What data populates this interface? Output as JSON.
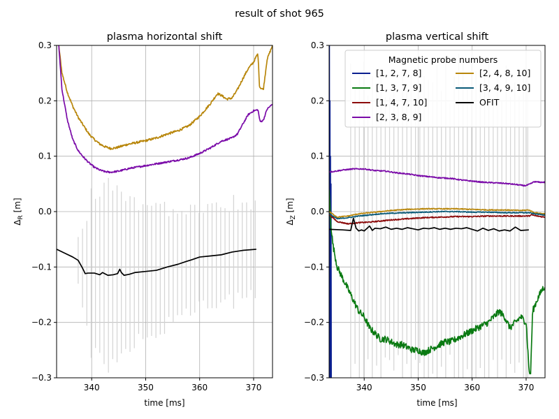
{
  "figure": {
    "suptitle": "result of shot 965"
  },
  "colors": {
    "p1278": "#0a1f8f",
    "p1379": "#0a7a12",
    "p14710": "#8b0a0a",
    "p2389": "#7a0aa8",
    "p24810": "#b8860b",
    "p34910": "#0a5a78",
    "ofit": "#000000",
    "errbar": "#d3d3d3",
    "grid": "#b0b0b0"
  },
  "legend": {
    "title": "Magnetic probe numbers",
    "entries": [
      {
        "label": "[1, 2, 7, 8]",
        "color": "#0a1f8f"
      },
      {
        "label": "[2, 4, 8, 10]",
        "color": "#b8860b"
      },
      {
        "label": "[1, 3, 7, 9]",
        "color": "#0a7a12"
      },
      {
        "label": "[3, 4, 9, 10]",
        "color": "#0a5a78"
      },
      {
        "label": "[1, 4, 7, 10]",
        "color": "#8b0a0a"
      },
      {
        "label": "OFIT",
        "color": "#000000"
      },
      {
        "label": "[2, 3, 8, 9]",
        "color": "#7a0aa8"
      }
    ],
    "placement": "top-right"
  },
  "chart_data": [
    {
      "type": "line",
      "title": "plasma horizontal shift",
      "xlabel": "time [ms]",
      "ylabel": "Δ_R [m]",
      "xlim": [
        333.5,
        373.5
      ],
      "ylim": [
        -0.3,
        0.3
      ],
      "xticks": [
        "340",
        "350",
        "360",
        "370"
      ],
      "xtick_values": [
        340,
        350,
        360,
        370
      ],
      "yticks": [
        "−0.3",
        "−0.2",
        "−0.1",
        "0.0",
        "0.1",
        "0.2",
        "0.3"
      ],
      "ytick_values": [
        -0.3,
        -0.2,
        -0.1,
        0.0,
        0.1,
        0.2,
        0.3
      ],
      "grid": true,
      "series": [
        {
          "name": "[2, 4, 8, 10]",
          "key": "p24810",
          "noise": 0.002,
          "x": [
            333.9,
            334.5,
            335.5,
            336.5,
            337.5,
            338.5,
            339.5,
            340.5,
            341.5,
            342.5,
            343.5,
            344.5,
            345.5,
            346.5,
            348,
            350,
            352,
            354,
            356,
            358,
            360,
            362,
            363.3,
            364,
            365,
            366,
            367,
            368,
            369,
            370,
            370.5,
            370.8,
            371.1,
            371.8,
            372.5,
            373.5
          ],
          "y": [
            0.3,
            0.25,
            0.215,
            0.19,
            0.17,
            0.155,
            0.14,
            0.13,
            0.122,
            0.117,
            0.114,
            0.115,
            0.118,
            0.121,
            0.124,
            0.128,
            0.133,
            0.14,
            0.146,
            0.155,
            0.172,
            0.195,
            0.213,
            0.21,
            0.203,
            0.205,
            0.22,
            0.24,
            0.258,
            0.27,
            0.28,
            0.285,
            0.225,
            0.22,
            0.275,
            0.3
          ]
        },
        {
          "name": "[2, 3, 8, 9]",
          "key": "p2389",
          "noise": 0.0015,
          "x": [
            333.9,
            334.5,
            335.5,
            336.5,
            337.5,
            338.5,
            339.5,
            340.5,
            341.5,
            342.5,
            343.5,
            345,
            347,
            350,
            353,
            356,
            358,
            360,
            362,
            364,
            365,
            366,
            367,
            368,
            369,
            370,
            370.5,
            370.8,
            371.2,
            371.8,
            372.5,
            373.5
          ],
          "y": [
            0.3,
            0.22,
            0.165,
            0.13,
            0.11,
            0.098,
            0.088,
            0.08,
            0.075,
            0.072,
            0.071,
            0.073,
            0.078,
            0.083,
            0.088,
            0.093,
            0.097,
            0.105,
            0.115,
            0.127,
            0.13,
            0.133,
            0.14,
            0.158,
            0.175,
            0.182,
            0.183,
            0.184,
            0.162,
            0.165,
            0.185,
            0.194
          ]
        },
        {
          "name": "OFIT",
          "key": "ofit",
          "noise": 0,
          "x": [
            333.5,
            335,
            336.5,
            337.5,
            338.3,
            338.8,
            339.3,
            340.5,
            341.5,
            342,
            343,
            344,
            344.8,
            345.2,
            345.5,
            346,
            347,
            348,
            350,
            352,
            354,
            356,
            357.5,
            358.5,
            360,
            362,
            364,
            366,
            368,
            370.5
          ],
          "y": [
            -0.068,
            -0.075,
            -0.082,
            -0.088,
            -0.102,
            -0.112,
            -0.111,
            -0.111,
            -0.114,
            -0.11,
            -0.115,
            -0.114,
            -0.112,
            -0.104,
            -0.11,
            -0.115,
            -0.113,
            -0.11,
            -0.108,
            -0.106,
            -0.1,
            -0.095,
            -0.09,
            -0.087,
            -0.082,
            -0.08,
            -0.078,
            -0.073,
            -0.07,
            -0.068
          ]
        }
      ],
      "error_bars": {
        "start": 337.5,
        "end": 370.5,
        "step": 0.8,
        "center_key": "ofit",
        "half_width_x": [
          337.5,
          340,
          343,
          346,
          350,
          354,
          358,
          362,
          366,
          370.5
        ],
        "half_width_y": [
          0.05,
          0.15,
          0.18,
          0.16,
          0.13,
          0.12,
          0.1,
          0.1,
          0.1,
          0.09
        ]
      }
    },
    {
      "type": "line",
      "title": "plasma vertical shift",
      "xlabel": "time [ms]",
      "ylabel": "Δ_Z [m]",
      "xlim": [
        333.5,
        373.5
      ],
      "ylim": [
        -0.3,
        0.3
      ],
      "xticks": [
        "340",
        "350",
        "360",
        "370"
      ],
      "xtick_values": [
        340,
        350,
        360,
        370
      ],
      "yticks": [
        "−0.3",
        "−0.2",
        "−0.1",
        "0.0",
        "0.1",
        "0.2",
        "0.3"
      ],
      "ytick_values": [
        -0.3,
        -0.2,
        -0.1,
        0.0,
        0.1,
        0.2,
        0.3
      ],
      "grid": true,
      "series": [
        {
          "name": "[1, 2, 7, 8]",
          "key": "p1278",
          "noise": 0,
          "x": [
            333.55,
            333.6,
            333.65,
            333.7,
            333.75,
            333.8,
            333.85,
            333.9
          ],
          "y": [
            0.3,
            -0.3,
            0.2,
            -0.3,
            0.1,
            -0.3,
            0.05,
            -0.3
          ]
        },
        {
          "name": "[1, 3, 7, 9]",
          "key": "p1379",
          "noise": 0.006,
          "x": [
            333.5,
            333.8,
            334.2,
            335,
            336,
            337,
            338,
            339,
            340,
            341,
            342,
            343,
            344,
            345,
            346,
            347,
            348,
            349,
            350,
            351,
            352,
            353,
            354,
            355,
            356,
            357,
            358,
            359,
            360,
            361,
            362,
            363,
            364,
            365,
            366,
            367,
            368,
            369,
            370,
            370.5,
            370.8,
            371.2,
            372,
            373,
            373.5
          ],
          "y": [
            0.04,
            -0.02,
            -0.06,
            -0.1,
            -0.12,
            -0.14,
            -0.16,
            -0.18,
            -0.19,
            -0.21,
            -0.22,
            -0.23,
            -0.23,
            -0.235,
            -0.24,
            -0.24,
            -0.245,
            -0.25,
            -0.25,
            -0.255,
            -0.25,
            -0.245,
            -0.24,
            -0.235,
            -0.235,
            -0.23,
            -0.225,
            -0.22,
            -0.215,
            -0.21,
            -0.205,
            -0.2,
            -0.19,
            -0.18,
            -0.19,
            -0.21,
            -0.2,
            -0.19,
            -0.2,
            -0.28,
            -0.3,
            -0.18,
            -0.16,
            -0.14,
            -0.135
          ]
        },
        {
          "name": "[1, 4, 7, 10]",
          "key": "p14710",
          "noise": 0.001,
          "x": [
            333.5,
            335,
            337,
            339,
            341,
            343,
            345,
            348,
            351,
            354,
            357,
            360,
            363,
            366,
            369,
            370.5,
            371,
            372,
            373.5
          ],
          "y": [
            -0.005,
            -0.018,
            -0.022,
            -0.02,
            -0.019,
            -0.017,
            -0.015,
            -0.013,
            -0.011,
            -0.01,
            -0.009,
            -0.009,
            -0.008,
            -0.008,
            -0.008,
            -0.008,
            -0.006,
            -0.008,
            -0.01
          ]
        },
        {
          "name": "[2, 3, 8, 9]",
          "key": "p2389",
          "noise": 0.001,
          "x": [
            333.5,
            334,
            336,
            338,
            340,
            342,
            344,
            346,
            348,
            350,
            352,
            354,
            356,
            358,
            360,
            362,
            364,
            366,
            368,
            369.5,
            370,
            370.8,
            371.5,
            372.5,
            373.5
          ],
          "y": [
            0.072,
            0.072,
            0.075,
            0.077,
            0.077,
            0.074,
            0.073,
            0.07,
            0.068,
            0.065,
            0.063,
            0.061,
            0.06,
            0.057,
            0.055,
            0.053,
            0.052,
            0.051,
            0.049,
            0.047,
            0.047,
            0.05,
            0.054,
            0.053,
            0.053
          ]
        },
        {
          "name": "[2, 4, 8, 10]",
          "key": "p24810",
          "noise": 0.0008,
          "x": [
            333.5,
            335,
            337,
            339,
            341,
            343,
            345,
            348,
            351,
            354,
            357,
            360,
            363,
            366,
            369,
            370.5,
            371.5,
            373.5
          ],
          "y": [
            0.0,
            -0.01,
            -0.008,
            -0.004,
            -0.002,
            0.0,
            0.002,
            0.004,
            0.005,
            0.005,
            0.005,
            0.004,
            0.003,
            0.003,
            0.002,
            0.003,
            -0.002,
            -0.004
          ]
        },
        {
          "name": "[3, 4, 9, 10]",
          "key": "p34910",
          "noise": 0.0008,
          "x": [
            333.5,
            335,
            337,
            339,
            341,
            343,
            345,
            348,
            351,
            354,
            357,
            360,
            363,
            366,
            369,
            370.5,
            371.5,
            373.5
          ],
          "y": [
            -0.004,
            -0.013,
            -0.011,
            -0.008,
            -0.006,
            -0.004,
            -0.003,
            -0.002,
            -0.001,
            0.0,
            0.0,
            -0.001,
            -0.001,
            -0.002,
            -0.002,
            -0.002,
            -0.004,
            -0.006
          ]
        },
        {
          "name": "OFIT",
          "key": "ofit",
          "noise": 0,
          "x": [
            333.5,
            336,
            337.5,
            338,
            338.5,
            339,
            339.5,
            340,
            341,
            341.5,
            342,
            343,
            344,
            345,
            346,
            347,
            348,
            349,
            350,
            351,
            352,
            353,
            354,
            355,
            356,
            357,
            358,
            359,
            360,
            361,
            362,
            363,
            364,
            365,
            366,
            367,
            368,
            369,
            370.5
          ],
          "y": [
            -0.032,
            -0.033,
            -0.034,
            -0.012,
            -0.03,
            -0.035,
            -0.033,
            -0.035,
            -0.026,
            -0.034,
            -0.03,
            -0.031,
            -0.028,
            -0.032,
            -0.03,
            -0.032,
            -0.029,
            -0.031,
            -0.033,
            -0.03,
            -0.031,
            -0.029,
            -0.032,
            -0.03,
            -0.032,
            -0.03,
            -0.031,
            -0.029,
            -0.032,
            -0.035,
            -0.03,
            -0.034,
            -0.031,
            -0.035,
            -0.033,
            -0.035,
            -0.028,
            -0.034,
            -0.033
          ]
        }
      ],
      "error_bars": {
        "start": 337.5,
        "end": 370.5,
        "step": 0.8,
        "center_key": "ofit",
        "half_width_x": [
          337.5,
          340,
          345,
          350,
          355,
          360,
          365,
          370.5
        ],
        "half_width_y": [
          0.3,
          0.3,
          0.3,
          0.3,
          0.3,
          0.3,
          0.3,
          0.3
        ]
      }
    }
  ]
}
